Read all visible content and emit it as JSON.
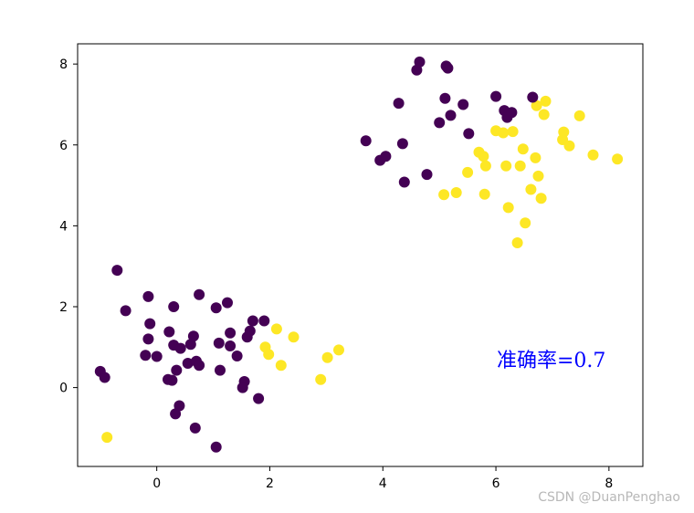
{
  "chart_data": {
    "type": "scatter",
    "xlim": [
      -1.4,
      8.6
    ],
    "ylim": [
      -1.95,
      8.5
    ],
    "x_ticks": [
      0,
      2,
      4,
      6,
      8
    ],
    "y_ticks": [
      0,
      2,
      4,
      6,
      8
    ],
    "grid": false,
    "colors": {
      "class_0": "#440154",
      "class_1": "#fde725"
    },
    "series": [
      {
        "class": 0,
        "points": [
          [
            -0.7,
            2.9
          ],
          [
            -0.55,
            1.9
          ],
          [
            -1.0,
            0.4
          ],
          [
            -0.92,
            0.25
          ],
          [
            -0.15,
            2.25
          ],
          [
            -0.12,
            1.58
          ],
          [
            -0.15,
            1.2
          ],
          [
            -0.2,
            0.8
          ],
          [
            0.0,
            0.77
          ],
          [
            0.22,
            1.38
          ],
          [
            0.3,
            2.0
          ],
          [
            0.3,
            1.05
          ],
          [
            0.42,
            0.97
          ],
          [
            0.35,
            0.43
          ],
          [
            0.2,
            0.2
          ],
          [
            0.27,
            0.18
          ],
          [
            0.4,
            -0.45
          ],
          [
            0.33,
            -0.65
          ],
          [
            0.55,
            0.6
          ],
          [
            0.6,
            1.07
          ],
          [
            0.65,
            1.27
          ],
          [
            0.7,
            0.65
          ],
          [
            0.75,
            0.55
          ],
          [
            0.75,
            2.3
          ],
          [
            0.68,
            -1.0
          ],
          [
            1.05,
            1.97
          ],
          [
            1.1,
            1.1
          ],
          [
            1.12,
            0.43
          ],
          [
            1.25,
            2.1
          ],
          [
            1.3,
            1.35
          ],
          [
            1.3,
            1.03
          ],
          [
            1.42,
            0.78
          ],
          [
            1.55,
            0.15
          ],
          [
            1.52,
            0.0
          ],
          [
            1.6,
            1.25
          ],
          [
            1.65,
            1.4
          ],
          [
            1.7,
            1.65
          ],
          [
            1.8,
            -0.27
          ],
          [
            1.9,
            1.65
          ],
          [
            1.05,
            -1.47
          ],
          [
            3.7,
            6.1
          ],
          [
            3.95,
            5.62
          ],
          [
            4.05,
            5.72
          ],
          [
            4.28,
            7.03
          ],
          [
            4.35,
            6.03
          ],
          [
            4.38,
            5.08
          ],
          [
            4.6,
            7.85
          ],
          [
            4.65,
            8.05
          ],
          [
            4.78,
            5.27
          ],
          [
            5.0,
            6.55
          ],
          [
            5.1,
            7.15
          ],
          [
            5.12,
            7.95
          ],
          [
            5.15,
            7.9
          ],
          [
            5.2,
            6.73
          ],
          [
            5.42,
            7.0
          ],
          [
            5.52,
            6.28
          ],
          [
            6.0,
            7.2
          ],
          [
            6.15,
            6.85
          ],
          [
            6.2,
            6.68
          ],
          [
            6.28,
            6.8
          ],
          [
            6.65,
            7.18
          ]
        ]
      },
      {
        "class": 1,
        "points": [
          [
            -0.88,
            -1.23
          ],
          [
            1.92,
            1.0
          ],
          [
            1.98,
            0.82
          ],
          [
            2.12,
            1.45
          ],
          [
            2.2,
            0.55
          ],
          [
            2.42,
            1.25
          ],
          [
            2.9,
            0.2
          ],
          [
            3.02,
            0.74
          ],
          [
            3.22,
            0.93
          ],
          [
            5.08,
            4.77
          ],
          [
            5.3,
            4.82
          ],
          [
            5.5,
            5.32
          ],
          [
            5.7,
            5.82
          ],
          [
            5.78,
            5.72
          ],
          [
            5.82,
            5.48
          ],
          [
            5.8,
            4.78
          ],
          [
            6.0,
            6.35
          ],
          [
            6.13,
            6.3
          ],
          [
            6.18,
            5.48
          ],
          [
            6.22,
            4.45
          ],
          [
            6.3,
            6.33
          ],
          [
            6.38,
            3.58
          ],
          [
            6.43,
            5.48
          ],
          [
            6.48,
            5.9
          ],
          [
            6.52,
            4.07
          ],
          [
            6.62,
            4.9
          ],
          [
            6.7,
            5.68
          ],
          [
            6.72,
            6.97
          ],
          [
            6.75,
            5.23
          ],
          [
            6.8,
            4.68
          ],
          [
            6.85,
            6.75
          ],
          [
            6.88,
            7.08
          ],
          [
            7.18,
            6.13
          ],
          [
            7.2,
            6.32
          ],
          [
            7.3,
            5.98
          ],
          [
            7.48,
            6.72
          ],
          [
            7.72,
            5.75
          ],
          [
            8.15,
            5.65
          ]
        ]
      }
    ],
    "annotation": {
      "text": "准确率=0.7",
      "color": "#0000ff"
    }
  },
  "watermark": "CSDN @DuanPenghao"
}
